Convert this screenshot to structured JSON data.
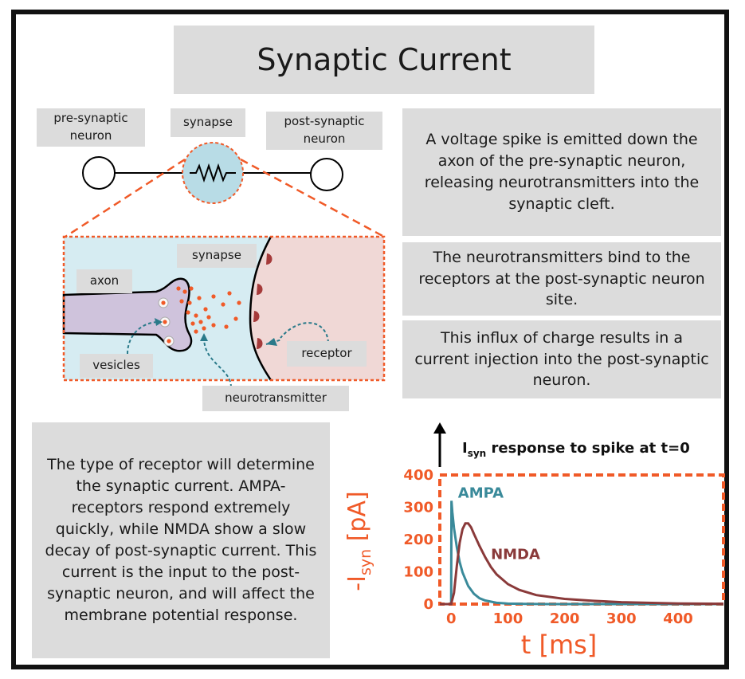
{
  "title": "Synaptic Current",
  "labels": {
    "pre_synaptic_line1": "pre-synaptic",
    "pre_synaptic_line2": "neuron",
    "synapse_top": "synapse",
    "post_synaptic_line1": "post-synaptic",
    "post_synaptic_line2": "neuron",
    "synapse_zoom": "synapse",
    "axon": "axon",
    "vesicles": "vesicles",
    "receptor": "receptor",
    "neurotransmitter": "neurotransmitter"
  },
  "descriptions": [
    "A voltage spike is emitted down the axon of the pre-synaptic neuron, releasing neurotransmitters into the synaptic cleft.",
    "The neurotransmitters bind to the receptors at the post-synaptic neuron site.",
    "This influx of charge results in a current injection into the post-synaptic neuron."
  ],
  "explanation": "The type of receptor will determine the synaptic current. AMPA-receptors respond extremely quickly, while NMDA show a slow decay of post-synaptic current. This current is the input to the post-synaptic neuron, and will affect the membrane potential response.",
  "chart_data": {
    "type": "line",
    "title_main": "I",
    "title_sub": "syn",
    "title_rest": " response to spike at t=0",
    "xlabel": "t [ms]",
    "ylabel_prefix": "-I",
    "ylabel_sub": "syn",
    "ylabel_suffix": " [pA]",
    "xlim": [
      -20,
      480
    ],
    "ylim": [
      0,
      400
    ],
    "x_ticks": [
      0,
      100,
      200,
      300,
      400
    ],
    "y_ticks": [
      0,
      100,
      200,
      300,
      400
    ],
    "series": [
      {
        "name": "AMPA",
        "color": "#3a8a9a",
        "x": [
          -20,
          0,
          0.5,
          2,
          5,
          10,
          15,
          20,
          30,
          40,
          50,
          60,
          80,
          100,
          130,
          170,
          220,
          300,
          400,
          480
        ],
        "y": [
          0,
          0,
          320,
          285,
          235,
          175,
          130,
          98,
          56,
          32,
          18,
          11,
          4,
          1.5,
          0.5,
          0,
          0,
          0,
          0,
          0
        ]
      },
      {
        "name": "NMDA",
        "color": "#8a3a3a",
        "x": [
          -20,
          0,
          5,
          10,
          15,
          20,
          25,
          30,
          35,
          40,
          50,
          60,
          70,
          80,
          100,
          120,
          150,
          200,
          250,
          300,
          400,
          480
        ],
        "y": [
          0,
          0,
          35,
          120,
          190,
          232,
          250,
          250,
          238,
          218,
          180,
          145,
          115,
          92,
          62,
          44,
          28,
          16,
          10,
          6,
          2,
          1
        ]
      }
    ]
  },
  "colors": {
    "orange": "#f05a28",
    "gray": "#dcdcdc",
    "axon": "#cfc3dc",
    "postneuron": "#f0d8d6",
    "cleft": "#d6ecf2"
  }
}
